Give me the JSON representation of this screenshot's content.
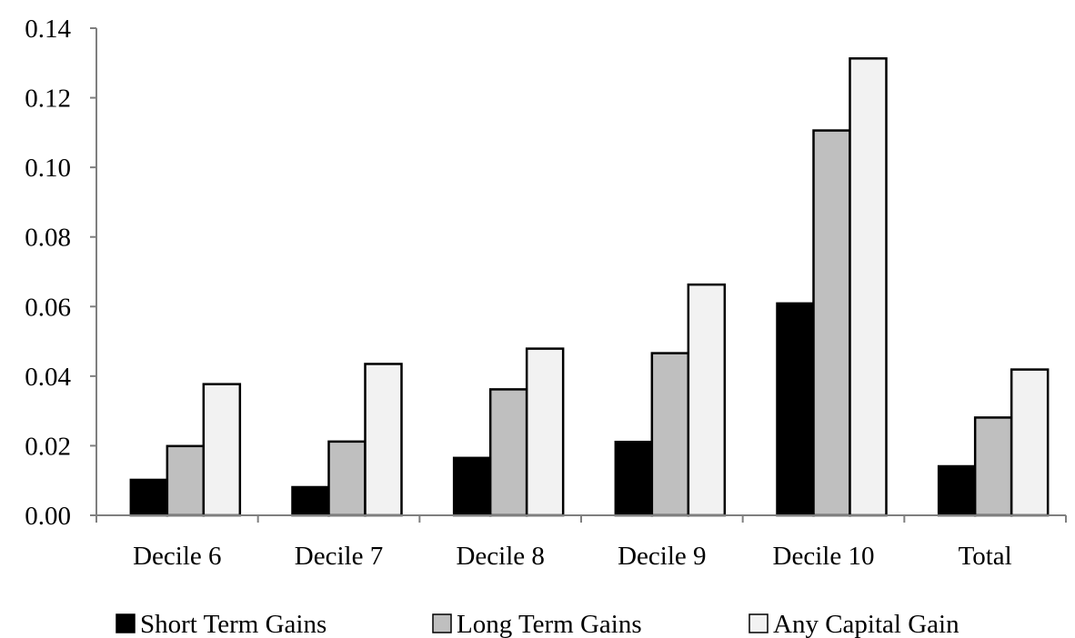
{
  "chart_data": {
    "type": "bar",
    "title": "",
    "xlabel": "",
    "ylabel": "",
    "categories": [
      "Decile 6",
      "Decile 7",
      "Decile 8",
      "Decile 9",
      "Decile 10",
      "Total"
    ],
    "ylim": [
      0,
      0.14
    ],
    "yticks": [
      "0.00",
      "0.02",
      "0.04",
      "0.06",
      "0.08",
      "0.10",
      "0.12",
      "0.14"
    ],
    "grid": false,
    "legend_position": "bottom",
    "series": [
      {
        "name": "Short Term Gains",
        "color": "#000000",
        "values": [
          0.0102,
          0.0081,
          0.0165,
          0.0211,
          0.0609,
          0.0141
        ]
      },
      {
        "name": "Long Term Gains",
        "color": "#bfbfbf",
        "values": [
          0.0199,
          0.0212,
          0.0362,
          0.0466,
          0.1106,
          0.0281
        ]
      },
      {
        "name": "Any Capital Gain",
        "color": "#f2f2f2",
        "values": [
          0.0377,
          0.0435,
          0.0479,
          0.0663,
          0.1313,
          0.0419
        ]
      }
    ]
  }
}
